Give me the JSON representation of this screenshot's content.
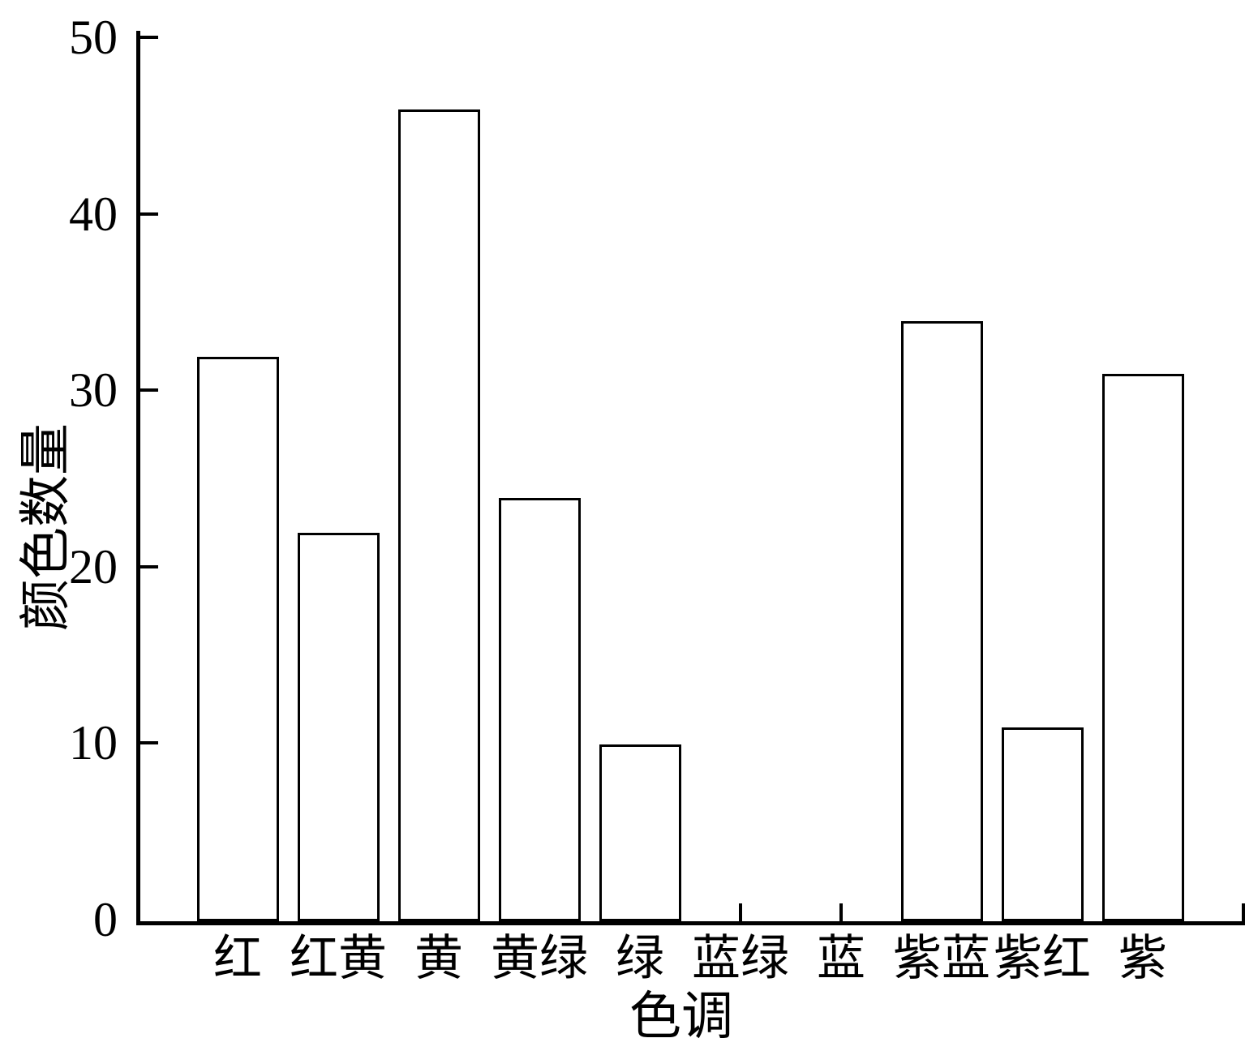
{
  "chart_data": {
    "type": "bar",
    "title": "",
    "xlabel": "色调",
    "ylabel": "颜色数量",
    "categories": [
      "红",
      "红黄",
      "黄",
      "黄绿",
      "绿",
      "蓝绿",
      "蓝",
      "紫蓝",
      "紫红",
      "紫"
    ],
    "values": [
      32,
      22,
      46,
      24,
      10,
      0,
      0,
      34,
      11,
      31
    ],
    "yticks": [
      0,
      10,
      20,
      30,
      40,
      50
    ],
    "ylim": [
      0,
      50
    ],
    "grid": "off",
    "legend": "none",
    "bar_fill_color": "#ffffff",
    "bar_edge_color": "#000000",
    "axis_color": "#000000",
    "background_color": "#ffffff"
  }
}
